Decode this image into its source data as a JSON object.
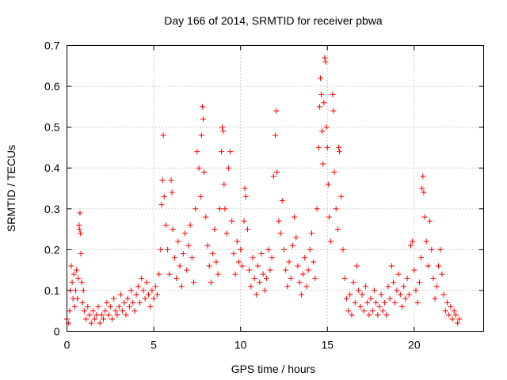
{
  "chart_data": {
    "type": "scatter",
    "title": "Day 166 of 2014, SRMTID for receiver pbwa",
    "xlabel": "GPS time / hours",
    "ylabel": "SRMTID / TECUs",
    "xlim": [
      0,
      24
    ],
    "ylim": [
      0,
      0.7
    ],
    "x_ticks": [
      0,
      5,
      10,
      15,
      20
    ],
    "x_tick_labels": [
      "0",
      "5",
      "10",
      "15",
      "20"
    ],
    "y_ticks": [
      0,
      0.1,
      0.2,
      0.3,
      0.4,
      0.5,
      0.6,
      0.7
    ],
    "y_tick_labels": [
      "0",
      "0.1",
      "0.2",
      "0.3",
      "0.4",
      "0.5",
      "0.6",
      "0.7"
    ],
    "grid": true,
    "marker": "plus",
    "series": [
      {
        "name": "SRMTID",
        "color": "#ff0000",
        "points": [
          [
            0.0,
            0.03
          ],
          [
            0.1,
            0.02
          ],
          [
            0.15,
            0.05
          ],
          [
            0.2,
            0.1
          ],
          [
            0.25,
            0.16
          ],
          [
            0.3,
            0.12
          ],
          [
            0.35,
            0.08
          ],
          [
            0.4,
            0.14
          ],
          [
            0.45,
            0.06
          ],
          [
            0.5,
            0.1
          ],
          [
            0.55,
            0.15
          ],
          [
            0.6,
            0.08
          ],
          [
            0.65,
            0.13
          ],
          [
            0.7,
            0.26
          ],
          [
            0.72,
            0.25
          ],
          [
            0.75,
            0.29
          ],
          [
            0.78,
            0.24
          ],
          [
            0.8,
            0.19
          ],
          [
            0.85,
            0.12
          ],
          [
            0.9,
            0.07
          ],
          [
            0.95,
            0.1
          ],
          [
            1.0,
            0.05
          ],
          [
            1.1,
            0.03
          ],
          [
            1.2,
            0.06
          ],
          [
            1.3,
            0.04
          ],
          [
            1.4,
            0.02
          ],
          [
            1.5,
            0.05
          ],
          [
            1.6,
            0.03
          ],
          [
            1.7,
            0.04
          ],
          [
            1.8,
            0.06
          ],
          [
            1.9,
            0.02
          ],
          [
            2.0,
            0.04
          ],
          [
            2.1,
            0.03
          ],
          [
            2.2,
            0.05
          ],
          [
            2.3,
            0.07
          ],
          [
            2.4,
            0.04
          ],
          [
            2.5,
            0.06
          ],
          [
            2.6,
            0.03
          ],
          [
            2.7,
            0.08
          ],
          [
            2.8,
            0.05
          ],
          [
            2.9,
            0.04
          ],
          [
            3.0,
            0.06
          ],
          [
            3.1,
            0.09
          ],
          [
            3.2,
            0.05
          ],
          [
            3.3,
            0.07
          ],
          [
            3.4,
            0.04
          ],
          [
            3.5,
            0.08
          ],
          [
            3.6,
            0.06
          ],
          [
            3.7,
            0.1
          ],
          [
            3.8,
            0.07
          ],
          [
            3.9,
            0.05
          ],
          [
            4.0,
            0.09
          ],
          [
            4.1,
            0.11
          ],
          [
            4.2,
            0.07
          ],
          [
            4.3,
            0.13
          ],
          [
            4.4,
            0.1
          ],
          [
            4.5,
            0.08
          ],
          [
            4.6,
            0.12
          ],
          [
            4.7,
            0.09
          ],
          [
            4.8,
            0.06
          ],
          [
            4.9,
            0.1
          ],
          [
            5.0,
            0.08
          ],
          [
            5.1,
            0.11
          ],
          [
            5.2,
            0.09
          ],
          [
            5.3,
            0.14
          ],
          [
            5.4,
            0.2
          ],
          [
            5.45,
            0.31
          ],
          [
            5.5,
            0.37
          ],
          [
            5.55,
            0.48
          ],
          [
            5.6,
            0.33
          ],
          [
            5.7,
            0.26
          ],
          [
            5.8,
            0.2
          ],
          [
            5.9,
            0.14
          ],
          [
            6.0,
            0.37
          ],
          [
            6.05,
            0.34
          ],
          [
            6.1,
            0.25
          ],
          [
            6.2,
            0.18
          ],
          [
            6.3,
            0.13
          ],
          [
            6.4,
            0.22
          ],
          [
            6.5,
            0.16
          ],
          [
            6.6,
            0.11
          ],
          [
            6.7,
            0.19
          ],
          [
            6.8,
            0.24
          ],
          [
            6.9,
            0.15
          ],
          [
            7.0,
            0.21
          ],
          [
            7.1,
            0.26
          ],
          [
            7.2,
            0.18
          ],
          [
            7.3,
            0.12
          ],
          [
            7.4,
            0.3
          ],
          [
            7.5,
            0.44
          ],
          [
            7.6,
            0.4
          ],
          [
            7.7,
            0.33
          ],
          [
            7.75,
            0.48
          ],
          [
            7.8,
            0.55
          ],
          [
            7.85,
            0.52
          ],
          [
            7.9,
            0.39
          ],
          [
            8.0,
            0.28
          ],
          [
            8.1,
            0.21
          ],
          [
            8.2,
            0.16
          ],
          [
            8.3,
            0.12
          ],
          [
            8.4,
            0.19
          ],
          [
            8.5,
            0.25
          ],
          [
            8.6,
            0.17
          ],
          [
            8.7,
            0.14
          ],
          [
            8.8,
            0.3
          ],
          [
            8.9,
            0.44
          ],
          [
            8.95,
            0.5
          ],
          [
            9.0,
            0.49
          ],
          [
            9.05,
            0.36
          ],
          [
            9.1,
            0.3
          ],
          [
            9.2,
            0.24
          ],
          [
            9.3,
            0.4
          ],
          [
            9.4,
            0.44
          ],
          [
            9.5,
            0.27
          ],
          [
            9.6,
            0.19
          ],
          [
            9.7,
            0.14
          ],
          [
            9.8,
            0.22
          ],
          [
            9.9,
            0.17
          ],
          [
            10.0,
            0.2
          ],
          [
            10.1,
            0.16
          ],
          [
            10.2,
            0.27
          ],
          [
            10.25,
            0.35
          ],
          [
            10.3,
            0.33
          ],
          [
            10.4,
            0.25
          ],
          [
            10.5,
            0.15
          ],
          [
            10.6,
            0.11
          ],
          [
            10.7,
            0.18
          ],
          [
            10.8,
            0.13
          ],
          [
            10.9,
            0.09
          ],
          [
            11.0,
            0.16
          ],
          [
            11.1,
            0.12
          ],
          [
            11.2,
            0.19
          ],
          [
            11.3,
            0.14
          ],
          [
            11.4,
            0.1
          ],
          [
            11.5,
            0.13
          ],
          [
            11.6,
            0.2
          ],
          [
            11.7,
            0.15
          ],
          [
            11.8,
            0.18
          ],
          [
            11.9,
            0.38
          ],
          [
            12.0,
            0.48
          ],
          [
            12.05,
            0.54
          ],
          [
            12.1,
            0.39
          ],
          [
            12.2,
            0.27
          ],
          [
            12.3,
            0.24
          ],
          [
            12.4,
            0.32
          ],
          [
            12.5,
            0.2
          ],
          [
            12.6,
            0.15
          ],
          [
            12.7,
            0.11
          ],
          [
            12.8,
            0.17
          ],
          [
            12.9,
            0.13
          ],
          [
            13.0,
            0.21
          ],
          [
            13.1,
            0.28
          ],
          [
            13.2,
            0.23
          ],
          [
            13.3,
            0.16
          ],
          [
            13.4,
            0.12
          ],
          [
            13.5,
            0.09
          ],
          [
            13.6,
            0.14
          ],
          [
            13.7,
            0.18
          ],
          [
            13.8,
            0.11
          ],
          [
            13.9,
            0.15
          ],
          [
            14.0,
            0.2
          ],
          [
            14.1,
            0.24
          ],
          [
            14.2,
            0.17
          ],
          [
            14.3,
            0.13
          ],
          [
            14.4,
            0.3
          ],
          [
            14.5,
            0.45
          ],
          [
            14.55,
            0.55
          ],
          [
            14.6,
            0.62
          ],
          [
            14.65,
            0.58
          ],
          [
            14.7,
            0.49
          ],
          [
            14.75,
            0.41
          ],
          [
            14.8,
            0.56
          ],
          [
            14.85,
            0.67
          ],
          [
            14.9,
            0.66
          ],
          [
            14.95,
            0.5
          ],
          [
            15.0,
            0.45
          ],
          [
            15.05,
            0.36
          ],
          [
            15.1,
            0.28
          ],
          [
            15.2,
            0.22
          ],
          [
            15.3,
            0.58
          ],
          [
            15.35,
            0.54
          ],
          [
            15.4,
            0.39
          ],
          [
            15.5,
            0.3
          ],
          [
            15.6,
            0.25
          ],
          [
            15.65,
            0.45
          ],
          [
            15.7,
            0.44
          ],
          [
            15.8,
            0.33
          ],
          [
            15.9,
            0.2
          ],
          [
            16.0,
            0.13
          ],
          [
            16.1,
            0.08
          ],
          [
            16.2,
            0.05
          ],
          [
            16.3,
            0.09
          ],
          [
            16.4,
            0.04
          ],
          [
            16.5,
            0.12
          ],
          [
            16.6,
            0.07
          ],
          [
            16.7,
            0.16
          ],
          [
            16.8,
            0.1
          ],
          [
            16.9,
            0.06
          ],
          [
            17.0,
            0.09
          ],
          [
            17.1,
            0.05
          ],
          [
            17.2,
            0.11
          ],
          [
            17.3,
            0.07
          ],
          [
            17.4,
            0.04
          ],
          [
            17.5,
            0.08
          ],
          [
            17.6,
            0.05
          ],
          [
            17.7,
            0.1
          ],
          [
            17.8,
            0.07
          ],
          [
            17.9,
            0.04
          ],
          [
            18.0,
            0.06
          ],
          [
            18.1,
            0.09
          ],
          [
            18.2,
            0.05
          ],
          [
            18.3,
            0.07
          ],
          [
            18.4,
            0.04
          ],
          [
            18.5,
            0.11
          ],
          [
            18.6,
            0.08
          ],
          [
            18.7,
            0.16
          ],
          [
            18.8,
            0.12
          ],
          [
            18.9,
            0.07
          ],
          [
            19.0,
            0.1
          ],
          [
            19.1,
            0.14
          ],
          [
            19.2,
            0.09
          ],
          [
            19.3,
            0.06
          ],
          [
            19.4,
            0.11
          ],
          [
            19.5,
            0.08
          ],
          [
            19.6,
            0.13
          ],
          [
            19.7,
            0.09
          ],
          [
            19.8,
            0.21
          ],
          [
            19.9,
            0.22
          ],
          [
            20.0,
            0.15
          ],
          [
            20.1,
            0.1
          ],
          [
            20.2,
            0.07
          ],
          [
            20.3,
            0.12
          ],
          [
            20.4,
            0.18
          ],
          [
            20.45,
            0.35
          ],
          [
            20.5,
            0.38
          ],
          [
            20.55,
            0.34
          ],
          [
            20.6,
            0.28
          ],
          [
            20.7,
            0.22
          ],
          [
            20.8,
            0.16
          ],
          [
            20.9,
            0.27
          ],
          [
            21.0,
            0.2
          ],
          [
            21.1,
            0.13
          ],
          [
            21.2,
            0.08
          ],
          [
            21.3,
            0.11
          ],
          [
            21.4,
            0.16
          ],
          [
            21.5,
            0.2
          ],
          [
            21.6,
            0.14
          ],
          [
            21.7,
            0.09
          ],
          [
            21.8,
            0.05
          ],
          [
            21.9,
            0.07
          ],
          [
            22.0,
            0.04
          ],
          [
            22.1,
            0.06
          ],
          [
            22.2,
            0.03
          ],
          [
            22.3,
            0.05
          ],
          [
            22.4,
            0.04
          ],
          [
            22.5,
            0.02
          ],
          [
            22.6,
            0.03
          ]
        ]
      }
    ]
  }
}
